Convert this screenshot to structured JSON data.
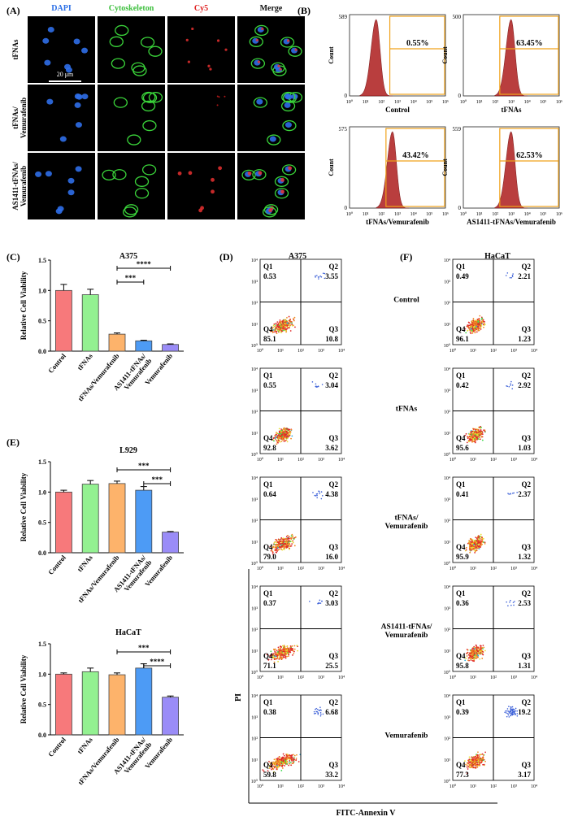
{
  "panel_labels": {
    "A": "(A)",
    "B": "(B)",
    "C": "(C)",
    "D": "(D)",
    "E": "(E)",
    "F": "(F)"
  },
  "microscopy": {
    "columns": [
      "DAPI",
      "Cytoskeleton",
      "Cy5",
      "Merge"
    ],
    "column_colors": [
      "#2b6fe6",
      "#3cbf3c",
      "#e02020",
      "#111111"
    ],
    "rows": [
      "tFNAs",
      "tFNAs/\nVemurafenib",
      "AS1411-tFNAs/\nVemurafenib"
    ],
    "scale_bar": "20 μm"
  },
  "flow_histograms": [
    {
      "ymax": "589",
      "pct": "0.55%",
      "label": "Control"
    },
    {
      "ymax": "500",
      "pct": "63.45%",
      "label": "tFNAs"
    },
    {
      "ymax": "575",
      "pct": "43.42%",
      "label": "tFNAs/Vemurafenib"
    },
    {
      "ymax": "559",
      "pct": "62.53%",
      "label": "AS1411-tFNAs/Vemurafenib"
    }
  ],
  "flow_common": {
    "ylabel": "Count",
    "xticks": [
      "10⁰",
      "10¹",
      "10²",
      "10³",
      "10⁴",
      "10⁵",
      "10⁶"
    ],
    "y0": "0"
  },
  "chart_data": [
    {
      "type": "bar",
      "title": "A375",
      "ylabel": "Relative Cell Viability",
      "categories": [
        "Control",
        "tFNAs",
        "tFNAs/Vemurafenib",
        "AS1411-tFNAs/\nVemurafenib",
        "Vemurafenib"
      ],
      "values": [
        1.0,
        0.93,
        0.28,
        0.17,
        0.11
      ],
      "errors": [
        0.1,
        0.09,
        0.02,
        0.01,
        0.01
      ],
      "colors": [
        "#f7797b",
        "#93f191",
        "#fdb36b",
        "#4d9bf5",
        "#9a8cf7"
      ],
      "ylim": [
        0,
        1.5
      ],
      "yticks": [
        "0.0",
        "0.5",
        "1.0",
        "1.5"
      ],
      "significance": [
        {
          "from": 2,
          "to": 4,
          "label": "****"
        },
        {
          "from": 2,
          "to": 3,
          "label": "***"
        }
      ]
    },
    {
      "type": "bar",
      "title": "L929",
      "ylabel": "Relative Cell Viability",
      "categories": [
        "Control",
        "tFNAs",
        "tFNAs/Vemurafenib",
        "AS1411-tFNAs/\nVemurafenib",
        "Vemurafenib"
      ],
      "values": [
        1.0,
        1.13,
        1.14,
        1.03,
        0.34
      ],
      "errors": [
        0.03,
        0.06,
        0.04,
        0.06,
        0.01
      ],
      "colors": [
        "#f7797b",
        "#93f191",
        "#fdb36b",
        "#4d9bf5",
        "#9a8cf7"
      ],
      "ylim": [
        0,
        1.5
      ],
      "yticks": [
        "0.0",
        "0.5",
        "1.0",
        "1.5"
      ],
      "significance": [
        {
          "from": 2,
          "to": 4,
          "label": "***"
        },
        {
          "from": 3,
          "to": 4,
          "label": "***"
        }
      ]
    },
    {
      "type": "bar",
      "title": "HaCaT",
      "ylabel": "Relative Cell Viability",
      "categories": [
        "Control",
        "tFNAs",
        "tFNAs/Vemurafenib",
        "AS1411-tFNAs/\nVemurafenib",
        "Vemurafenib"
      ],
      "values": [
        1.0,
        1.04,
        0.99,
        1.1,
        0.62
      ],
      "errors": [
        0.02,
        0.06,
        0.03,
        0.07,
        0.02
      ],
      "colors": [
        "#f7797b",
        "#93f191",
        "#fdb36b",
        "#4d9bf5",
        "#9a8cf7"
      ],
      "ylim": [
        0,
        1.5
      ],
      "yticks": [
        "0.0",
        "0.5",
        "1.0",
        "1.5"
      ],
      "significance": [
        {
          "from": 2,
          "to": 4,
          "label": "***"
        },
        {
          "from": 3,
          "to": 4,
          "label": "****"
        }
      ]
    }
  ],
  "apoptosis": {
    "A375_title": "A375",
    "HaCaT_title": "HaCaT",
    "xlabel": "FITC-Annexin V",
    "ylabel": "PI",
    "ticks": [
      "10⁰",
      "10¹",
      "10²",
      "10³",
      "10⁴"
    ],
    "groups": [
      "Control",
      "tFNAs",
      "tFNAs/\nVemurafenib",
      "AS1411-tFNAs/\nVemurafenib",
      "Vemurafenib"
    ],
    "A375": [
      {
        "Q1": "0.53",
        "Q2": "3.55",
        "Q3": "10.8",
        "Q4": "85.1"
      },
      {
        "Q1": "0.55",
        "Q2": "3.04",
        "Q3": "3.62",
        "Q4": "92.8"
      },
      {
        "Q1": "0.64",
        "Q2": "4.38",
        "Q3": "16.0",
        "Q4": "79.0"
      },
      {
        "Q1": "0.37",
        "Q2": "3.03",
        "Q3": "25.5",
        "Q4": "71.1"
      },
      {
        "Q1": "0.38",
        "Q2": "6.68",
        "Q3": "33.2",
        "Q4": "59.8"
      }
    ],
    "HaCaT": [
      {
        "Q1": "0.49",
        "Q2": "2.21",
        "Q3": "1.23",
        "Q4": "96.1"
      },
      {
        "Q1": "0.42",
        "Q2": "2.92",
        "Q3": "1.03",
        "Q4": "95.6"
      },
      {
        "Q1": "0.41",
        "Q2": "2.37",
        "Q3": "1.32",
        "Q4": "95.9"
      },
      {
        "Q1": "0.36",
        "Q2": "2.53",
        "Q3": "1.31",
        "Q4": "95.8"
      },
      {
        "Q1": "0.39",
        "Q2": "19.2",
        "Q3": "3.17",
        "Q4": "77.3"
      }
    ]
  }
}
